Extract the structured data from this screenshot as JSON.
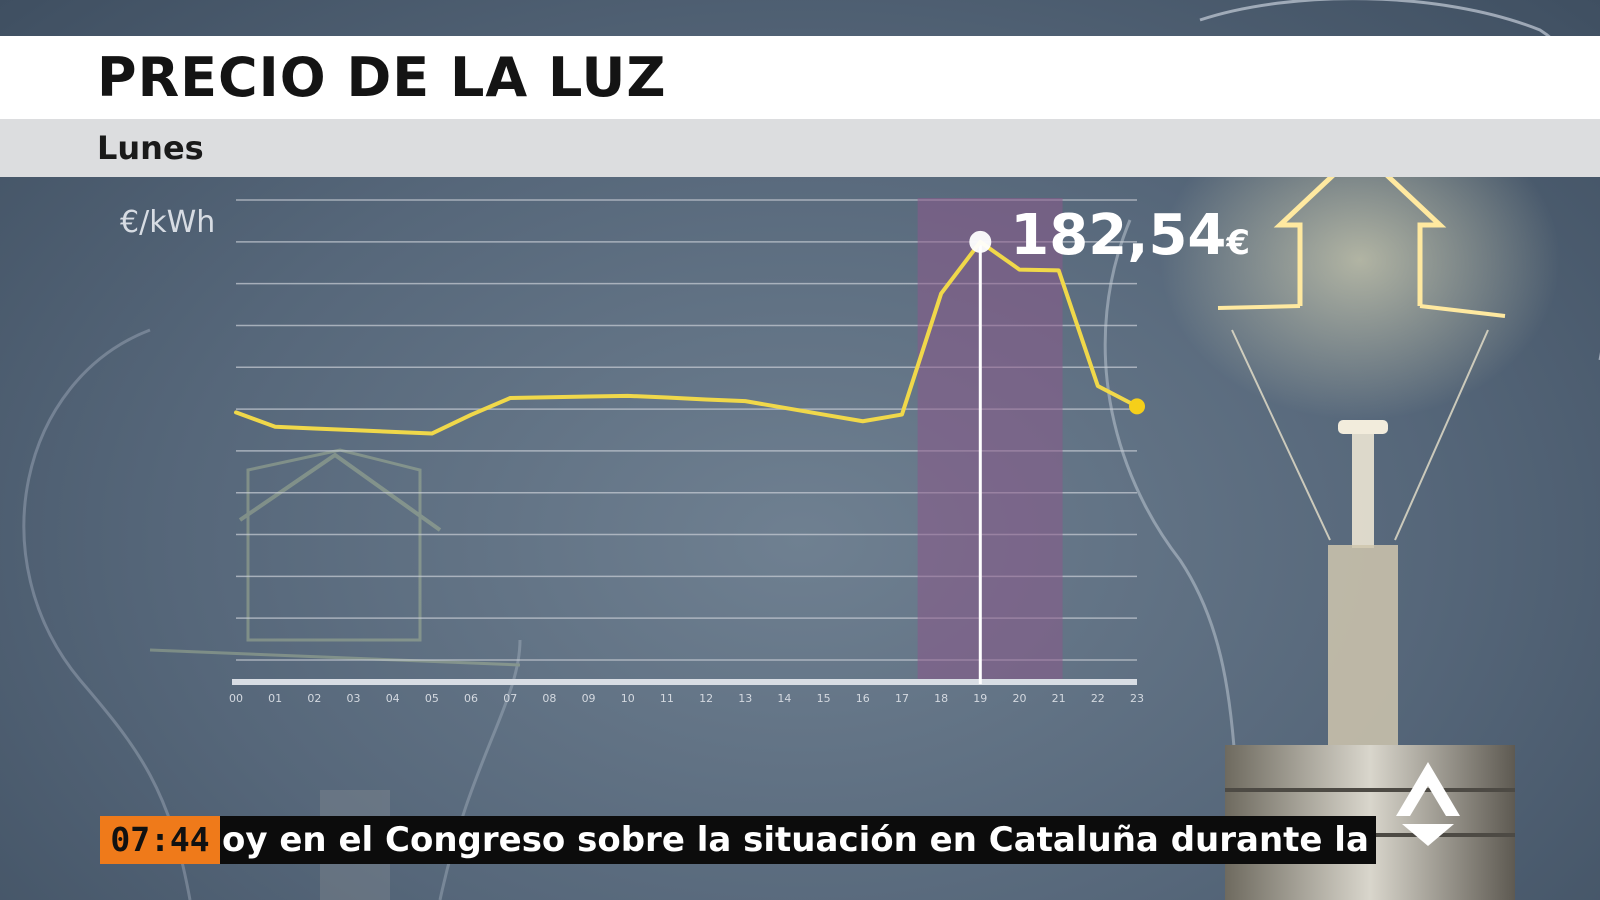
{
  "header": {
    "title": "PRECIO DE LA LUZ",
    "subtitle": "Lunes"
  },
  "chart_data": {
    "type": "line",
    "ylabel": "€/kWh",
    "x": [
      "00",
      "01",
      "02",
      "03",
      "04",
      "05",
      "06",
      "07",
      "08",
      "09",
      "10",
      "11",
      "12",
      "13",
      "14",
      "15",
      "16",
      "17",
      "18",
      "19",
      "20",
      "21",
      "22",
      "23"
    ],
    "values": [
      111.5,
      105.5,
      104.8,
      104.1,
      103.4,
      102.7,
      110.5,
      117.5,
      117.8,
      118.1,
      118.4,
      117.7,
      116.9,
      116.2,
      113.4,
      110.6,
      107.8,
      110.6,
      161.0,
      182.54,
      171.0,
      170.7,
      122.5,
      114.0
    ],
    "ylim": [
      0,
      200
    ],
    "grid": true,
    "highlight": {
      "range": [
        17.4,
        21.1
      ],
      "index": 19,
      "label_value": "182,54",
      "label_unit": "€"
    },
    "colors": {
      "line": "#f0d84a",
      "endpoint": "#f5cf1a",
      "highlight_band": "#8a5a8a",
      "highlight_axis": "#e0105a",
      "grid": "#c9ced6"
    }
  },
  "ticker": {
    "time": "07:44",
    "text": "oy en el Congreso sobre la situación en Cataluña durante la"
  },
  "logo": {
    "icon": "antena3-logo-icon"
  }
}
